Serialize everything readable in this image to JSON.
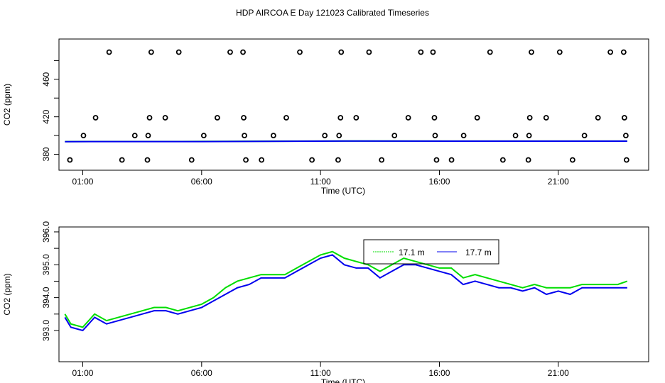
{
  "chart_data": [
    {
      "type": "scatter",
      "title": "HDP AIRCOA E  Day 121023  Calibrated Timeseries",
      "xlabel": "Time (UTC)",
      "ylabel": "CO2 (ppm)",
      "xlim": [
        0,
        24.8
      ],
      "ylim": [
        363,
        503
      ],
      "xticks": [
        1,
        6,
        11,
        16,
        21
      ],
      "xtick_labels": [
        "01:00",
        "06:00",
        "11:00",
        "16:00",
        "21:00"
      ],
      "yticks": [
        380,
        400,
        420,
        440,
        460,
        480
      ],
      "ytick_labels": [
        "380",
        "",
        "420",
        "",
        "460",
        ""
      ],
      "points": {
        "x": [
          0.46,
          2.65,
          3.72,
          5.58,
          7.86,
          8.52,
          10.64,
          11.74,
          13.57,
          15.88,
          16.51,
          18.67,
          19.74,
          21.6,
          23.87,
          1.03,
          3.19,
          3.75,
          6.09,
          7.8,
          9.02,
          11.18,
          11.78,
          14.11,
          15.82,
          17.02,
          19.2,
          19.77,
          22.1,
          23.84,
          1.54,
          3.81,
          4.47,
          6.66,
          7.77,
          9.56,
          11.84,
          12.5,
          14.69,
          15.79,
          17.59,
          19.8,
          20.49,
          22.67,
          23.78,
          2.11,
          3.88,
          5.04,
          7.2,
          7.74,
          10.13,
          11.87,
          13.04,
          15.22,
          15.73,
          18.13,
          19.87,
          21.06,
          23.19,
          23.75
        ],
        "y": [
          374,
          374,
          374,
          374,
          374,
          374,
          374,
          374,
          374,
          374,
          374,
          374,
          374,
          374,
          374,
          400,
          400,
          400,
          400,
          400,
          400,
          400,
          400,
          400,
          400,
          400,
          400,
          400,
          400,
          400,
          419,
          419,
          419,
          419,
          419,
          419,
          419,
          419,
          419,
          419,
          419,
          419,
          419,
          419,
          419,
          489,
          489,
          489,
          489,
          489,
          489,
          489,
          489,
          489,
          489,
          489,
          489,
          489,
          489,
          489
        ]
      },
      "series": [
        {
          "name": "17.1 m",
          "color": "#00dd00",
          "x": [
            0.25,
            6,
            12,
            18,
            23.9
          ],
          "y": [
            393.6,
            393.7,
            394.2,
            394.1,
            394.1
          ]
        },
        {
          "name": "17.7 m",
          "color": "#0000ee",
          "x": [
            0.25,
            6,
            12,
            18,
            23.9
          ],
          "y": [
            393.5,
            393.6,
            394.1,
            394.0,
            394.0
          ]
        }
      ]
    },
    {
      "type": "line",
      "xlabel": "Time (UTC)",
      "ylabel": "CO2 (ppm)",
      "xlim": [
        0,
        24.8
      ],
      "ylim": [
        392.05,
        396.15
      ],
      "xticks": [
        1,
        6,
        11,
        16,
        21
      ],
      "xtick_labels": [
        "01:00",
        "06:00",
        "11:00",
        "16:00",
        "21:00"
      ],
      "yticks": [
        393,
        393.5,
        394,
        394.5,
        395,
        395.5,
        396
      ],
      "ytick_labels": [
        "393.0",
        "",
        "394.0",
        "",
        "395.0",
        "",
        "396.0"
      ],
      "legend": "top-center",
      "x": [
        0.25,
        0.5,
        1,
        1.5,
        2,
        2.5,
        3,
        3.5,
        4,
        4.5,
        5,
        5.5,
        6,
        6.5,
        7,
        7.5,
        8,
        8.5,
        9,
        9.5,
        10,
        10.5,
        11,
        11.5,
        12,
        12.5,
        13,
        13.5,
        14,
        14.5,
        15,
        15.5,
        16,
        16.5,
        17,
        17.5,
        18,
        18.5,
        19,
        19.5,
        20,
        20.5,
        21,
        21.5,
        22,
        22.5,
        23,
        23.5,
        23.9
      ],
      "series": [
        {
          "name": "17.1 m",
          "color": "#00dd00",
          "values": [
            393.5,
            393.2,
            393.1,
            393.5,
            393.3,
            393.4,
            393.5,
            393.6,
            393.7,
            393.7,
            393.6,
            393.7,
            393.8,
            394.0,
            394.3,
            394.5,
            394.6,
            394.7,
            394.7,
            394.7,
            394.9,
            395.1,
            395.3,
            395.4,
            395.2,
            395.1,
            395.0,
            394.8,
            395.0,
            395.2,
            395.1,
            395.0,
            394.9,
            394.9,
            394.6,
            394.7,
            394.6,
            394.5,
            394.4,
            394.3,
            394.4,
            394.3,
            394.3,
            394.3,
            394.4,
            394.4,
            394.4,
            394.4,
            394.5
          ]
        },
        {
          "name": "17.7 m",
          "color": "#0000ee",
          "values": [
            393.4,
            393.1,
            393.0,
            393.4,
            393.2,
            393.3,
            393.4,
            393.5,
            393.6,
            393.6,
            393.5,
            393.6,
            393.7,
            393.9,
            394.1,
            394.3,
            394.4,
            394.6,
            394.6,
            394.6,
            394.8,
            395.0,
            395.2,
            395.3,
            395.0,
            394.9,
            394.9,
            394.6,
            394.8,
            395.0,
            395.0,
            394.9,
            394.8,
            394.7,
            394.4,
            394.5,
            394.4,
            394.3,
            394.3,
            394.2,
            394.3,
            394.1,
            394.2,
            394.1,
            394.3,
            394.3,
            394.3,
            394.3,
            394.3
          ]
        }
      ]
    }
  ]
}
